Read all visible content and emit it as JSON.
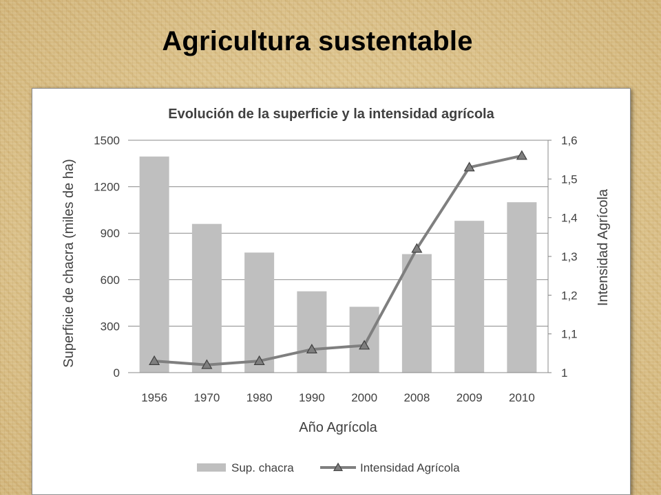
{
  "slide": {
    "title": "Agricultura sustentable"
  },
  "chart_data": {
    "type": "bar",
    "title": "Evolución de la superficie y la intensidad agrícola",
    "categories": [
      "1956",
      "1970",
      "1980",
      "1990",
      "2000",
      "2008",
      "2009",
      "2010"
    ],
    "xlabel": "Año Agrícola",
    "ylabel": "Superficie de chacra (miles de ha)",
    "y2label": "Intensidad Agrícola",
    "ylim": [
      0,
      1500
    ],
    "yticks": [
      "0",
      "300",
      "600",
      "900",
      "1200",
      "1500"
    ],
    "yticks_values": [
      0,
      300,
      600,
      900,
      1200,
      1500
    ],
    "y2lim": [
      1,
      1.6
    ],
    "y2ticks": [
      "1",
      "1,1",
      "1,2",
      "1,3",
      "1,4",
      "1,5",
      "1,6"
    ],
    "y2ticks_values": [
      1,
      1.1,
      1.2,
      1.3,
      1.4,
      1.5,
      1.6
    ],
    "grid": true,
    "legend_position": "bottom",
    "series": [
      {
        "name": "Sup. chacra",
        "type": "bar",
        "axis": "left",
        "color": "#bfbfbf",
        "values": [
          1395,
          960,
          775,
          525,
          425,
          765,
          980,
          1100
        ]
      },
      {
        "name": "Intensidad Agrícola",
        "type": "line",
        "axis": "right",
        "color": "#7f7f7f",
        "marker": "triangle",
        "values": [
          1.03,
          1.02,
          1.03,
          1.06,
          1.07,
          1.32,
          1.53,
          1.56
        ]
      }
    ]
  }
}
